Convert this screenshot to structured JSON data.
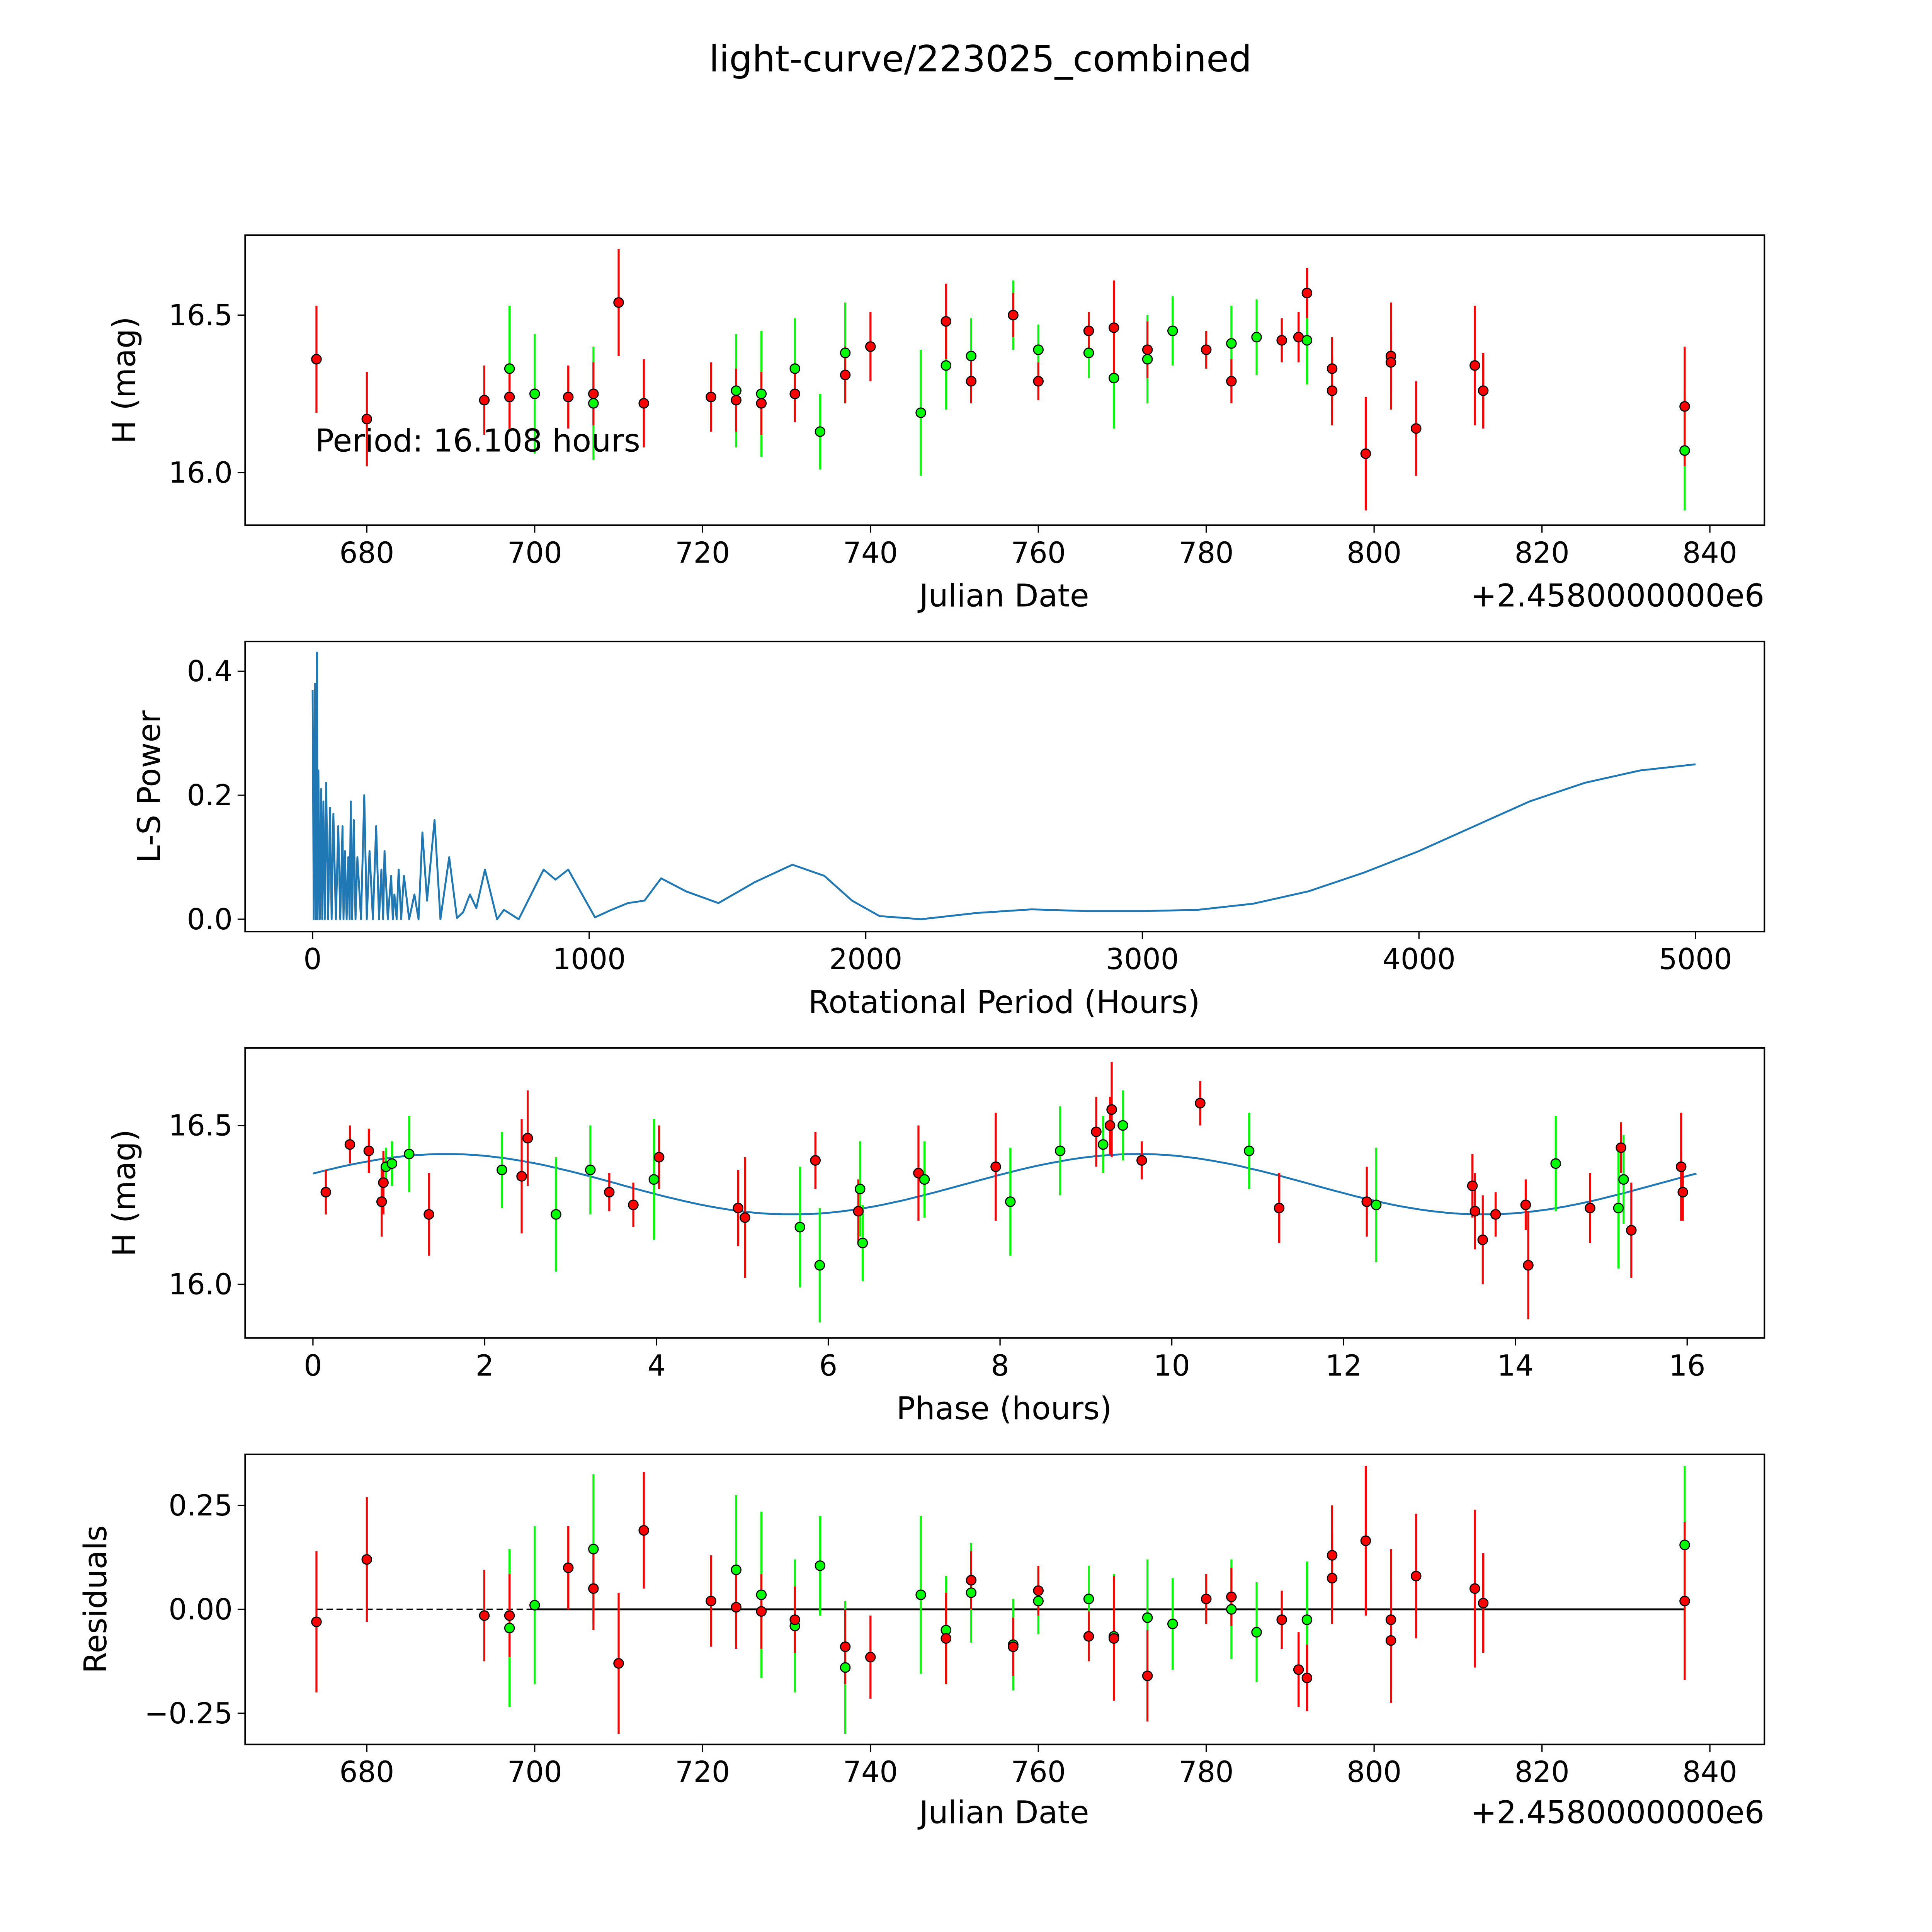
{
  "title": "light-curve/223025_combined",
  "colors": {
    "red": "#ff0000",
    "green": "#00ff00",
    "line": "#1f77b4"
  },
  "chart_data": [
    {
      "type": "scatter",
      "name": "light-curve",
      "xlabel": "Julian Date",
      "ylabel": "H (mag)",
      "offset_label": "+2.4580000000e6",
      "annotation": "Period: 16.108 hours",
      "xlim": [
        665.5,
        846.5
      ],
      "ylim": [
        15.833,
        16.754
      ],
      "xticks": [
        "680",
        "700",
        "720",
        "740",
        "760",
        "780",
        "800",
        "820",
        "840"
      ],
      "xtick_values": [
        680,
        700,
        720,
        740,
        760,
        780,
        800,
        820,
        840
      ],
      "yticks": [
        "16.0",
        "16.5"
      ],
      "ytick_values": [
        16.0,
        16.5
      ],
      "points": [
        [
          674,
          16.36,
          0.17,
          "r"
        ],
        [
          680,
          16.17,
          0.15,
          "r"
        ],
        [
          694,
          16.23,
          0.11,
          "r"
        ],
        [
          697,
          16.33,
          0.2,
          "g"
        ],
        [
          697,
          16.24,
          0.1,
          "r"
        ],
        [
          700,
          16.25,
          0.19,
          "g"
        ],
        [
          704,
          16.24,
          0.1,
          "r"
        ],
        [
          707,
          16.22,
          0.18,
          "g"
        ],
        [
          707,
          16.25,
          0.1,
          "r"
        ],
        [
          710,
          16.54,
          0.17,
          "r"
        ],
        [
          713,
          16.22,
          0.14,
          "r"
        ],
        [
          721,
          16.24,
          0.11,
          "r"
        ],
        [
          724,
          16.26,
          0.18,
          "g"
        ],
        [
          724,
          16.23,
          0.1,
          "r"
        ],
        [
          727,
          16.25,
          0.2,
          "g"
        ],
        [
          727,
          16.22,
          0.1,
          "r"
        ],
        [
          731,
          16.33,
          0.16,
          "g"
        ],
        [
          731,
          16.25,
          0.09,
          "r"
        ],
        [
          734,
          16.13,
          0.12,
          "g"
        ],
        [
          737,
          16.38,
          0.16,
          "g"
        ],
        [
          737,
          16.31,
          0.09,
          "r"
        ],
        [
          740,
          16.4,
          0.11,
          "r"
        ],
        [
          746,
          16.19,
          0.2,
          "g"
        ],
        [
          749,
          16.34,
          0.14,
          "g"
        ],
        [
          749,
          16.48,
          0.12,
          "r"
        ],
        [
          752,
          16.37,
          0.12,
          "g"
        ],
        [
          752,
          16.29,
          0.07,
          "r"
        ],
        [
          757,
          16.5,
          0.11,
          "g"
        ],
        [
          757,
          16.5,
          0.07,
          "r"
        ],
        [
          760,
          16.39,
          0.08,
          "g"
        ],
        [
          760,
          16.29,
          0.06,
          "r"
        ],
        [
          766,
          16.38,
          0.08,
          "g"
        ],
        [
          766,
          16.45,
          0.06,
          "r"
        ],
        [
          769,
          16.3,
          0.16,
          "g"
        ],
        [
          769,
          16.46,
          0.15,
          "r"
        ],
        [
          773,
          16.36,
          0.14,
          "g"
        ],
        [
          773,
          16.39,
          0.09,
          "r"
        ],
        [
          776,
          16.45,
          0.11,
          "g"
        ],
        [
          780,
          16.39,
          0.06,
          "r"
        ],
        [
          783,
          16.41,
          0.12,
          "g"
        ],
        [
          783,
          16.29,
          0.07,
          "r"
        ],
        [
          786,
          16.43,
          0.12,
          "g"
        ],
        [
          789,
          16.42,
          0.07,
          "r"
        ],
        [
          791,
          16.43,
          0.08,
          "r"
        ],
        [
          792,
          16.42,
          0.14,
          "g"
        ],
        [
          792,
          16.57,
          0.08,
          "r"
        ],
        [
          795,
          16.33,
          0.1,
          "r"
        ],
        [
          795,
          16.26,
          0.11,
          "r"
        ],
        [
          799,
          16.06,
          0.18,
          "r"
        ],
        [
          802,
          16.37,
          0.17,
          "r"
        ],
        [
          802,
          16.35,
          0.1,
          "r"
        ],
        [
          805,
          16.14,
          0.15,
          "r"
        ],
        [
          812,
          16.34,
          0.19,
          "r"
        ],
        [
          813,
          16.26,
          0.12,
          "r"
        ],
        [
          837,
          16.07,
          0.19,
          "g"
        ],
        [
          837,
          16.21,
          0.19,
          "r"
        ]
      ]
    },
    {
      "type": "line",
      "name": "periodogram",
      "xlabel": "Rotational Period (Hours)",
      "ylabel": "L-S Power",
      "xlim": [
        -244,
        5249
      ],
      "ylim": [
        -0.02,
        0.448
      ],
      "xticks": [
        "0",
        "1000",
        "2000",
        "3000",
        "4000",
        "5000"
      ],
      "xtick_values": [
        0,
        1000,
        2000,
        3000,
        4000,
        5000
      ],
      "yticks": [
        "0.0",
        "0.2",
        "0.4"
      ],
      "ytick_values": [
        0.0,
        0.2,
        0.4
      ],
      "x": [
        0,
        4,
        9,
        12,
        16,
        18,
        21,
        26,
        31,
        35,
        39,
        44,
        49,
        56,
        63,
        69,
        75,
        84,
        93,
        100,
        108,
        112,
        117,
        123,
        129,
        134,
        138,
        143,
        149,
        155,
        162,
        175,
        187,
        196,
        206,
        218,
        230,
        240,
        249,
        255,
        260,
        272,
        284,
        290,
        296,
        304,
        311,
        320,
        330,
        349,
        368,
        383,
        397,
        414,
        441,
        462,
        494,
        522,
        544,
        569,
        592,
        623,
        667,
        692,
        745,
        835,
        878,
        924,
        1021,
        1080,
        1140,
        1200,
        1260,
        1350,
        1467,
        1600,
        1735,
        1850,
        1950,
        2050,
        2200,
        2400,
        2600,
        2800,
        3000,
        3200,
        3400,
        3600,
        3800,
        4000,
        4200,
        4400,
        4600,
        4800,
        5000
      ],
      "y": [
        0.37,
        0.0,
        0.38,
        0.0,
        0.43,
        0.0,
        0.24,
        0.0,
        0.21,
        0.0,
        0.19,
        0.0,
        0.22,
        0.0,
        0.18,
        0.0,
        0.17,
        0.0,
        0.15,
        0.0,
        0.15,
        0.0,
        0.11,
        0.0,
        0.1,
        0.0,
        0.19,
        0.0,
        0.16,
        0.0,
        0.1,
        0.0,
        0.2,
        0.0,
        0.11,
        0.0,
        0.15,
        0.0,
        0.08,
        0.0,
        0.11,
        0.0,
        0.07,
        0.0,
        0.04,
        0.0,
        0.08,
        0.0,
        0.07,
        0.0,
        0.04,
        0.0,
        0.14,
        0.03,
        0.16,
        0.0,
        0.1,
        0.002,
        0.011,
        0.04,
        0.018,
        0.08,
        0.0,
        0.015,
        0.0,
        0.08,
        0.064,
        0.08,
        0.003,
        0.015,
        0.026,
        0.03,
        0.066,
        0.045,
        0.026,
        0.06,
        0.088,
        0.07,
        0.03,
        0.005,
        0.0,
        0.01,
        0.016,
        0.013,
        0.013,
        0.015,
        0.025,
        0.045,
        0.075,
        0.11,
        0.15,
        0.19,
        0.22,
        0.24,
        0.25
      ]
    },
    {
      "type": "scatter",
      "name": "phase-folded",
      "xlabel": "Phase (hours)",
      "ylabel": "H (mag)",
      "xlim": [
        -0.79,
        16.9
      ],
      "ylim": [
        15.831,
        16.744
      ],
      "xticks": [
        "0",
        "2",
        "4",
        "6",
        "8",
        "10",
        "12",
        "14",
        "16"
      ],
      "xtick_values": [
        0,
        2,
        4,
        6,
        8,
        10,
        12,
        14,
        16
      ],
      "yticks": [
        "16.0",
        "16.5"
      ],
      "ytick_values": [
        16.0,
        16.5
      ],
      "model": {
        "mean": 16.315,
        "amplitude": 0.095,
        "period": 8.054,
        "peak_phase": 1.55,
        "range": [
          0,
          16.108
        ]
      },
      "points": [
        [
          0.15,
          16.29,
          0.07,
          "r"
        ],
        [
          0.43,
          16.44,
          0.06,
          "r"
        ],
        [
          0.65,
          16.42,
          0.07,
          "r"
        ],
        [
          0.8,
          16.26,
          0.11,
          "r"
        ],
        [
          0.82,
          16.32,
          0.1,
          "r"
        ],
        [
          0.85,
          16.37,
          0.06,
          "g"
        ],
        [
          0.92,
          16.38,
          0.07,
          "g"
        ],
        [
          1.12,
          16.41,
          0.12,
          "g"
        ],
        [
          1.35,
          16.22,
          0.13,
          "r"
        ],
        [
          2.2,
          16.36,
          0.12,
          "g"
        ],
        [
          2.43,
          16.34,
          0.18,
          "r"
        ],
        [
          2.5,
          16.46,
          0.15,
          "r"
        ],
        [
          2.83,
          16.22,
          0.18,
          "g"
        ],
        [
          3.23,
          16.36,
          0.14,
          "g"
        ],
        [
          3.45,
          16.29,
          0.06,
          "r"
        ],
        [
          3.73,
          16.25,
          0.07,
          "r"
        ],
        [
          3.97,
          16.33,
          0.19,
          "g"
        ],
        [
          4.03,
          16.4,
          0.1,
          "r"
        ],
        [
          4.95,
          16.24,
          0.12,
          "r"
        ],
        [
          5.03,
          16.21,
          0.19,
          "r"
        ],
        [
          5.67,
          16.18,
          0.19,
          "g"
        ],
        [
          5.85,
          16.39,
          0.09,
          "r"
        ],
        [
          5.9,
          16.06,
          0.18,
          "g"
        ],
        [
          6.35,
          16.23,
          0.1,
          "r"
        ],
        [
          6.37,
          16.3,
          0.15,
          "g"
        ],
        [
          6.4,
          16.13,
          0.12,
          "g"
        ],
        [
          7.05,
          16.35,
          0.15,
          "r"
        ],
        [
          7.12,
          16.33,
          0.12,
          "g"
        ],
        [
          7.95,
          16.37,
          0.17,
          "r"
        ],
        [
          8.12,
          16.26,
          0.17,
          "g"
        ],
        [
          8.7,
          16.42,
          0.14,
          "g"
        ],
        [
          9.12,
          16.48,
          0.11,
          "r"
        ],
        [
          9.2,
          16.44,
          0.09,
          "g"
        ],
        [
          9.28,
          16.5,
          0.09,
          "r"
        ],
        [
          9.3,
          16.55,
          0.15,
          "r"
        ],
        [
          9.43,
          16.5,
          0.11,
          "g"
        ],
        [
          9.65,
          16.39,
          0.06,
          "r"
        ],
        [
          10.33,
          16.57,
          0.07,
          "r"
        ],
        [
          10.9,
          16.42,
          0.12,
          "g"
        ],
        [
          11.25,
          16.24,
          0.11,
          "r"
        ],
        [
          12.27,
          16.26,
          0.11,
          "r"
        ],
        [
          12.38,
          16.25,
          0.18,
          "g"
        ],
        [
          13.5,
          16.31,
          0.1,
          "r"
        ],
        [
          13.53,
          16.23,
          0.12,
          "r"
        ],
        [
          13.62,
          16.14,
          0.14,
          "r"
        ],
        [
          13.77,
          16.22,
          0.07,
          "r"
        ],
        [
          14.12,
          16.25,
          0.08,
          "r"
        ],
        [
          14.15,
          16.06,
          0.17,
          "r"
        ],
        [
          14.47,
          16.38,
          0.15,
          "g"
        ],
        [
          14.87,
          16.24,
          0.11,
          "r"
        ],
        [
          15.2,
          16.24,
          0.19,
          "g"
        ],
        [
          15.23,
          16.43,
          0.08,
          "r"
        ],
        [
          15.26,
          16.33,
          0.14,
          "g"
        ],
        [
          15.35,
          16.17,
          0.15,
          "r"
        ],
        [
          15.93,
          16.37,
          0.17,
          "r"
        ],
        [
          15.95,
          16.29,
          0.09,
          "r"
        ]
      ]
    },
    {
      "type": "scatter",
      "name": "residuals",
      "xlabel": "Julian Date",
      "ylabel": "Residuals",
      "offset_label": "+2.4580000000e6",
      "xlim": [
        665.5,
        846.5
      ],
      "ylim": [
        -0.325,
        0.373
      ],
      "xticks": [
        "680",
        "700",
        "720",
        "740",
        "760",
        "780",
        "800",
        "820",
        "840"
      ],
      "xtick_values": [
        680,
        700,
        720,
        740,
        760,
        780,
        800,
        820,
        840
      ],
      "yticks": [
        "−0.25",
        "0.00",
        "0.25"
      ],
      "ytick_values": [
        -0.25,
        0.0,
        0.25
      ],
      "points": [
        [
          674,
          -0.03,
          0.17,
          "r"
        ],
        [
          680,
          0.12,
          0.15,
          "r"
        ],
        [
          694,
          -0.015,
          0.11,
          "r"
        ],
        [
          697,
          -0.045,
          0.19,
          "g"
        ],
        [
          697,
          -0.015,
          0.1,
          "r"
        ],
        [
          700,
          0.01,
          0.19,
          "g"
        ],
        [
          704,
          0.1,
          0.1,
          "r"
        ],
        [
          707,
          0.145,
          0.18,
          "g"
        ],
        [
          707,
          0.05,
          0.1,
          "r"
        ],
        [
          710,
          -0.13,
          0.17,
          "r"
        ],
        [
          713,
          0.19,
          0.14,
          "r"
        ],
        [
          721,
          0.02,
          0.11,
          "r"
        ],
        [
          724,
          0.095,
          0.18,
          "g"
        ],
        [
          724,
          0.005,
          0.1,
          "r"
        ],
        [
          727,
          0.035,
          0.2,
          "g"
        ],
        [
          727,
          -0.005,
          0.09,
          "r"
        ],
        [
          731,
          -0.04,
          0.16,
          "g"
        ],
        [
          731,
          -0.025,
          0.08,
          "r"
        ],
        [
          734,
          0.105,
          0.12,
          "g"
        ],
        [
          737,
          -0.14,
          0.16,
          "g"
        ],
        [
          737,
          -0.09,
          0.09,
          "r"
        ],
        [
          740,
          -0.115,
          0.1,
          "r"
        ],
        [
          746,
          0.035,
          0.19,
          "g"
        ],
        [
          749,
          -0.05,
          0.13,
          "g"
        ],
        [
          749,
          -0.07,
          0.11,
          "r"
        ],
        [
          752,
          0.04,
          0.12,
          "g"
        ],
        [
          752,
          0.07,
          0.07,
          "r"
        ],
        [
          757,
          -0.085,
          0.11,
          "g"
        ],
        [
          757,
          -0.09,
          0.07,
          "r"
        ],
        [
          760,
          0.02,
          0.08,
          "g"
        ],
        [
          760,
          0.045,
          0.06,
          "r"
        ],
        [
          766,
          0.025,
          0.08,
          "g"
        ],
        [
          766,
          -0.065,
          0.06,
          "r"
        ],
        [
          769,
          -0.065,
          0.15,
          "g"
        ],
        [
          769,
          -0.07,
          0.15,
          "r"
        ],
        [
          773,
          -0.02,
          0.14,
          "g"
        ],
        [
          773,
          -0.16,
          0.11,
          "r"
        ],
        [
          776,
          -0.035,
          0.11,
          "g"
        ],
        [
          780,
          0.025,
          0.06,
          "r"
        ],
        [
          783,
          0.0,
          0.12,
          "g"
        ],
        [
          783,
          0.03,
          0.07,
          "r"
        ],
        [
          786,
          -0.055,
          0.12,
          "g"
        ],
        [
          789,
          -0.025,
          0.07,
          "r"
        ],
        [
          791,
          -0.145,
          0.09,
          "r"
        ],
        [
          792,
          -0.025,
          0.14,
          "g"
        ],
        [
          792,
          -0.165,
          0.08,
          "r"
        ],
        [
          795,
          0.13,
          0.12,
          "r"
        ],
        [
          795,
          0.075,
          0.11,
          "r"
        ],
        [
          799,
          0.165,
          0.18,
          "r"
        ],
        [
          802,
          -0.025,
          0.17,
          "r"
        ],
        [
          802,
          -0.075,
          0.15,
          "r"
        ],
        [
          805,
          0.08,
          0.15,
          "r"
        ],
        [
          812,
          0.05,
          0.19,
          "r"
        ],
        [
          813,
          0.015,
          0.12,
          "r"
        ],
        [
          837,
          0.155,
          0.19,
          "g"
        ],
        [
          837,
          0.02,
          0.19,
          "r"
        ]
      ]
    }
  ]
}
